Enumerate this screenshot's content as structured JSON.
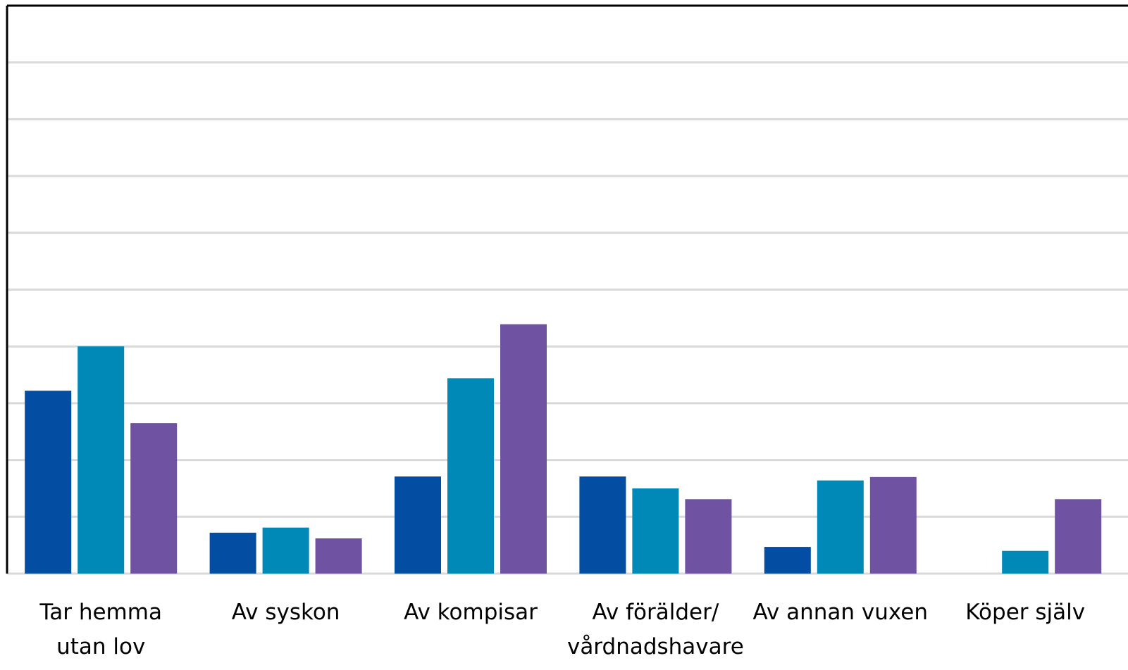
{
  "chart_data": {
    "type": "bar",
    "categories": [
      "Tar hemma\nutan lov",
      "Av syskon",
      "Av kompisar",
      "Av förälder/\nvårdnadshavare",
      "Av annan vuxen",
      "Köper själv"
    ],
    "series": [
      {
        "color": "#034ea2",
        "values": [
          3.22,
          0.72,
          1.71,
          1.71,
          0.47,
          0
        ]
      },
      {
        "color": "#0089b7",
        "values": [
          4.0,
          0.81,
          3.44,
          1.5,
          1.64,
          0.4
        ]
      },
      {
        "color": "#6f52a1",
        "values": [
          2.65,
          0.62,
          4.39,
          1.31,
          1.7,
          1.31
        ]
      }
    ],
    "ylim": [
      0,
      10
    ],
    "yticks": [
      0,
      1,
      2,
      3,
      4,
      5,
      6,
      7,
      8,
      9,
      10
    ],
    "grid": true
  }
}
